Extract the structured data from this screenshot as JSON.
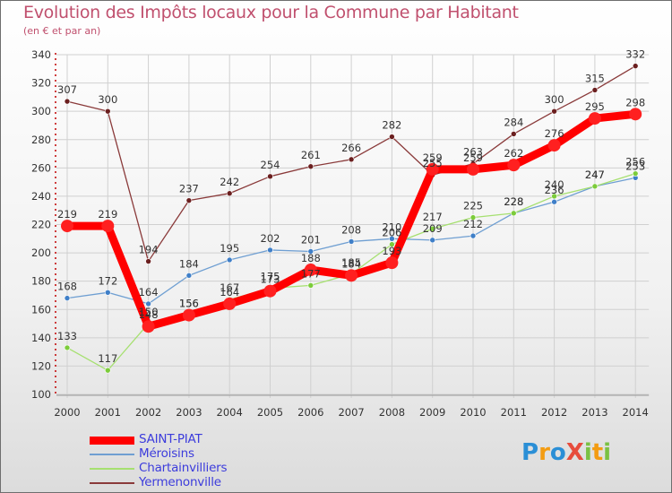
{
  "title": "Evolution des Impôts locaux pour la Commune par Habitant",
  "subtitle": "(en € et par an)",
  "colors": {
    "title": "#c0506e",
    "legend_text": "#3c3cdc",
    "grid": "#d0d0d0",
    "axis_tick": "#c00000"
  },
  "logo": {
    "letters": [
      {
        "char": "P",
        "color": "#2b8fd6"
      },
      {
        "char": "r",
        "color": "#f39c12"
      },
      {
        "char": "o",
        "color": "#2b8fd6"
      },
      {
        "char": "X",
        "color": "#e74c3c"
      },
      {
        "char": "i",
        "color": "#7ac143"
      },
      {
        "char": "t",
        "color": "#f39c12"
      },
      {
        "char": "i",
        "color": "#7ac143"
      }
    ]
  },
  "chart_data": {
    "type": "line",
    "title": "Evolution des Impôts locaux pour la Commune par Habitant",
    "subtitle": "(en € et par an)",
    "xlabel": "",
    "ylabel": "",
    "grid": true,
    "ylim": [
      100,
      340
    ],
    "yticks": [
      "100",
      "120",
      "140",
      "160",
      "180",
      "200",
      "220",
      "240",
      "260",
      "280",
      "300",
      "320",
      "340"
    ],
    "categories": [
      "2000",
      "2001",
      "2002",
      "2003",
      "2004",
      "2005",
      "2006",
      "2007",
      "2008",
      "2009",
      "2010",
      "2011",
      "2012",
      "2013",
      "2014"
    ],
    "series": [
      {
        "name": "SAINT-PIAT",
        "color": "#ff0000",
        "point_color": "#ff2020",
        "style": "thick",
        "values": [
          219,
          219,
          148,
          156,
          164,
          173,
          188,
          184,
          193,
          259,
          259,
          262,
          276,
          295,
          298
        ],
        "labels": [
          "219",
          "219",
          "148",
          "156",
          "164",
          "173",
          "188",
          "184",
          "193",
          "259",
          "259",
          "262",
          "276",
          "295",
          "298"
        ]
      },
      {
        "name": "Méroisins",
        "color": "#6f9fd2",
        "point_color": "#3f7fc8",
        "style": "thin",
        "values": [
          168,
          172,
          164,
          184,
          195,
          202,
          201,
          208,
          210,
          209,
          212,
          228,
          236,
          247,
          253
        ],
        "labels": [
          "168",
          "172",
          "164",
          "184",
          "195",
          "202",
          "201",
          "208",
          "210",
          "209",
          "212",
          "228",
          "236",
          "247",
          "253"
        ]
      },
      {
        "name": "Chartainvilliers",
        "color": "#a6e070",
        "point_color": "#7ccc3a",
        "style": "thin",
        "values": [
          133,
          117,
          150,
          156,
          167,
          175,
          177,
          185,
          206,
          217,
          225,
          228,
          240,
          247,
          256
        ],
        "labels": [
          "133",
          "117",
          "150",
          "156",
          "167",
          "175",
          "177",
          "185",
          "206",
          "217",
          "225",
          "228",
          "240",
          "247",
          "256"
        ]
      },
      {
        "name": "Yermenonville",
        "color": "#8a3a3a",
        "point_color": "#6b1f1f",
        "style": "thin",
        "values": [
          307,
          300,
          194,
          237,
          242,
          254,
          261,
          266,
          282,
          255,
          263,
          284,
          300,
          315,
          332
        ],
        "labels": [
          "307",
          "300",
          "194",
          "237",
          "242",
          "254",
          "261",
          "266",
          "282",
          "255",
          "263",
          "284",
          "300",
          "315",
          "332"
        ]
      }
    ],
    "legend": {
      "position": "bottom-left"
    }
  }
}
